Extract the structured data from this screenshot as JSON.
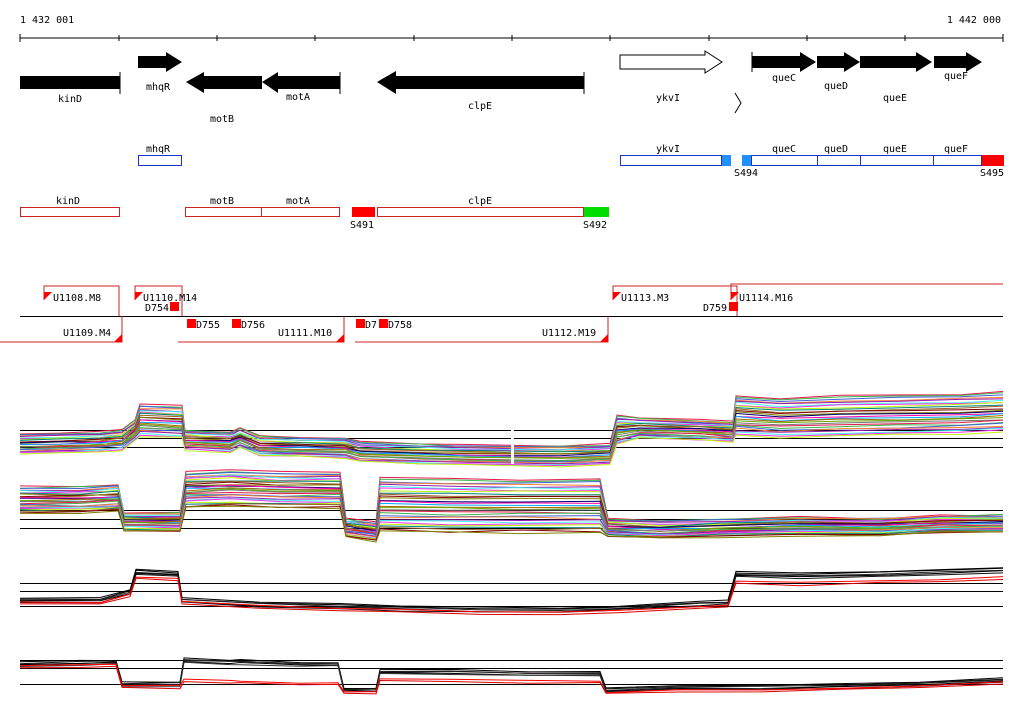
{
  "coordinates": {
    "start": "1 432 001",
    "end": "1 442 000"
  },
  "genes": {
    "kinD": "kinD",
    "mhqR": "mhqR",
    "motB": "motB",
    "motA": "motA",
    "clpE": "clpE",
    "ykvI": "ykvI",
    "queC": "queC",
    "queD": "queD",
    "queE": "queE",
    "queF": "queF"
  },
  "sites": {
    "s491": "S491",
    "s492": "S492",
    "s494": "S494",
    "s495": "S495"
  },
  "segments": {
    "u1108": "U1108.M8",
    "u1109": "U1109.M4",
    "u1110": "U1110.M14",
    "u1111": "U1111.M10",
    "u1112": "U1112.M19",
    "u1113": "U1113.M3",
    "u1114": "U1114.M16"
  },
  "downshifts": {
    "d754": "D754",
    "d755": "D755",
    "d756": "D756",
    "d757": "D7",
    "d758": "D758",
    "d759": "D759"
  },
  "colors": {
    "gene": "#000000",
    "operon": "#1a33cc",
    "tu": "#cc2222",
    "site_red": "#ff0000",
    "site_green": "#00dd00",
    "site_blue": "#1e90ff"
  }
}
